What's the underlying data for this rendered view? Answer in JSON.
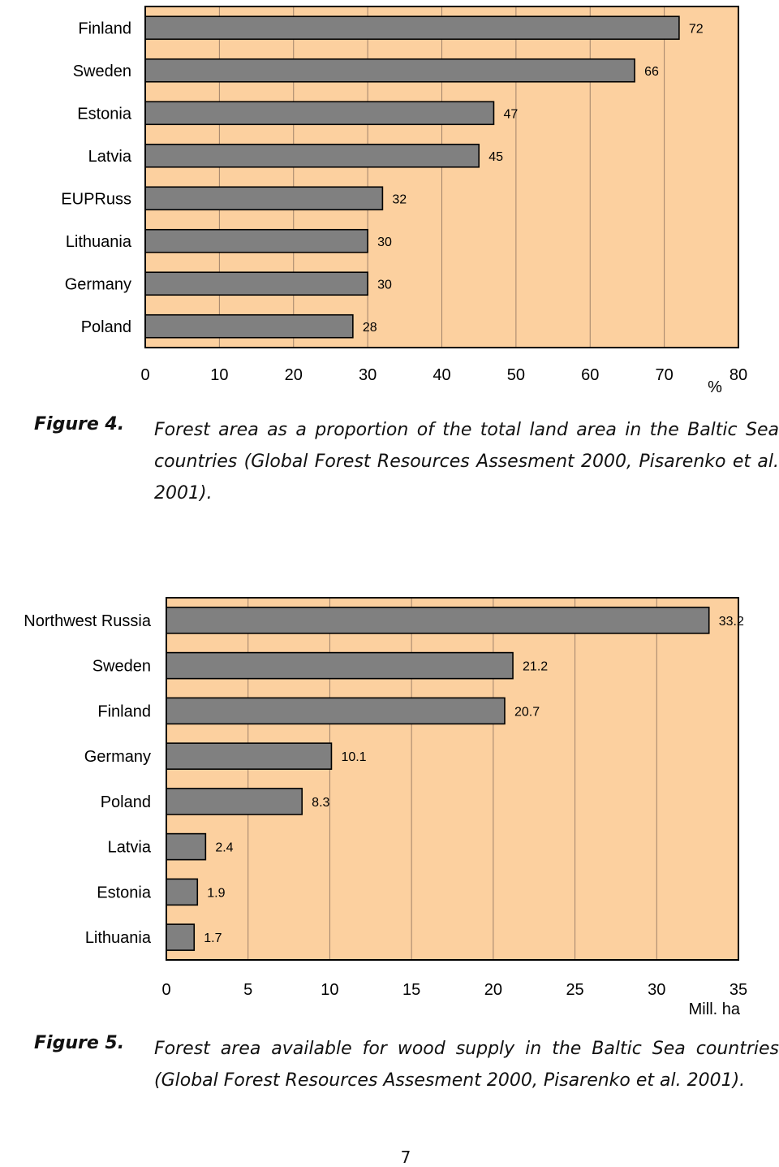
{
  "chart_data": [
    {
      "type": "bar",
      "orientation": "horizontal",
      "categories": [
        "Finland",
        "Sweden",
        "Estonia",
        "Latvia",
        "EUPRuss",
        "Lithuania",
        "Germany",
        "Poland"
      ],
      "values": [
        72,
        66,
        47,
        45,
        32,
        30,
        30,
        28
      ],
      "value_labels": [
        "72",
        "66",
        "47",
        "45",
        "32",
        "30",
        "30",
        "28"
      ],
      "xticks": [
        "0",
        "10",
        "20",
        "30",
        "40",
        "50",
        "60",
        "70",
        "80"
      ],
      "xlim": [
        0,
        80
      ],
      "xunit": "%",
      "grid": true,
      "colors": {
        "background": "#fcd09f",
        "bar": "#808080",
        "bar_edge": "#000000",
        "grid": "#a0826a"
      }
    },
    {
      "type": "bar",
      "orientation": "horizontal",
      "categories": [
        "Northwest Russia",
        "Sweden",
        "Finland",
        "Germany",
        "Poland",
        "Latvia",
        "Estonia",
        "Lithuania"
      ],
      "values": [
        33.2,
        21.2,
        20.7,
        10.1,
        8.3,
        2.4,
        1.9,
        1.7
      ],
      "value_labels": [
        "33.2",
        "21.2",
        "20.7",
        "10.1",
        "8.3",
        "2.4",
        "1.9",
        "1.7"
      ],
      "xticks": [
        "0",
        "5",
        "10",
        "15",
        "20",
        "25",
        "30",
        "35"
      ],
      "xlim": [
        0,
        35
      ],
      "xunit": "Mill. ha",
      "grid": true,
      "colors": {
        "background": "#fcd09f",
        "bar": "#808080",
        "bar_edge": "#000000",
        "grid": "#a0826a"
      }
    }
  ],
  "captions": [
    {
      "label": "Figure 4.",
      "text": "Forest area as a proportion of the total land area in the Baltic Sea countries (Global Forest Resources Assesment 2000, Pisarenko et al. 2001)."
    },
    {
      "label": "Figure 5.",
      "text": "Forest area available for wood supply in the Baltic Sea countries (Global Forest Resources Assesment 2000, Pisarenko et al. 2001)."
    }
  ],
  "page_number": "7"
}
